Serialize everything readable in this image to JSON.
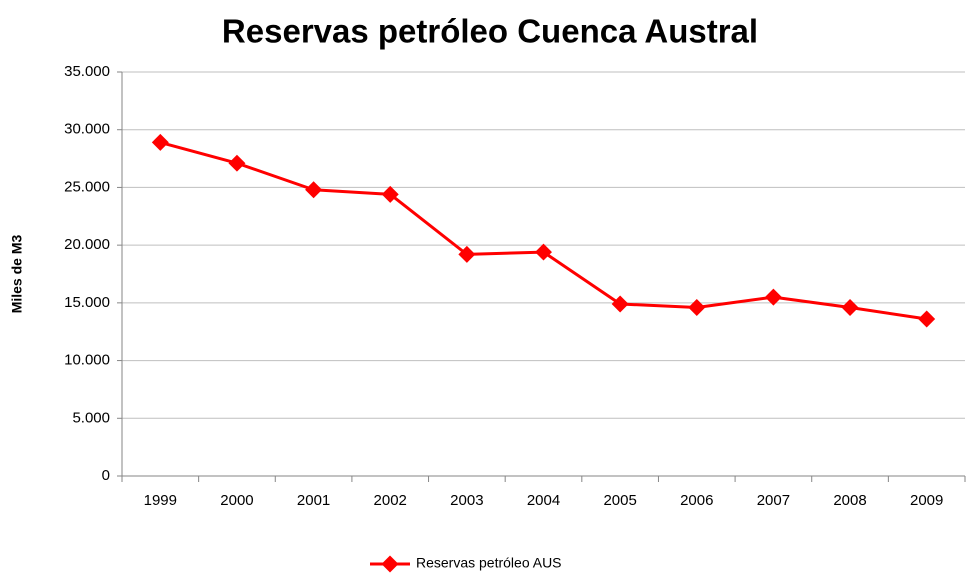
{
  "chart_data": {
    "type": "line",
    "title": "Reservas petróleo Cuenca Austral",
    "y_label": "Miles de M3",
    "categories": [
      "1999",
      "2000",
      "2001",
      "2002",
      "2003",
      "2004",
      "2005",
      "2006",
      "2007",
      "2008",
      "2009"
    ],
    "series": [
      {
        "name": "Reservas petróleo AUS",
        "color": "#ff0000",
        "values": [
          28900,
          27100,
          24800,
          24400,
          19200,
          19400,
          14900,
          14600,
          15500,
          14600,
          13600
        ]
      }
    ],
    "ylim": [
      0,
      35000
    ],
    "yticks": [
      0,
      {
        "value": 5000,
        "label": "5.000"
      },
      {
        "value": 10000,
        "label": "10.000"
      },
      {
        "value": 15000,
        "label": "15.000"
      },
      {
        "value": 20000,
        "label": "20.000"
      },
      {
        "value": 25000,
        "label": "25.000"
      },
      {
        "value": 30000,
        "label": "30.000"
      },
      {
        "value": 35000,
        "label": "35.000"
      }
    ],
    "grid": true,
    "legend": "bottom"
  }
}
